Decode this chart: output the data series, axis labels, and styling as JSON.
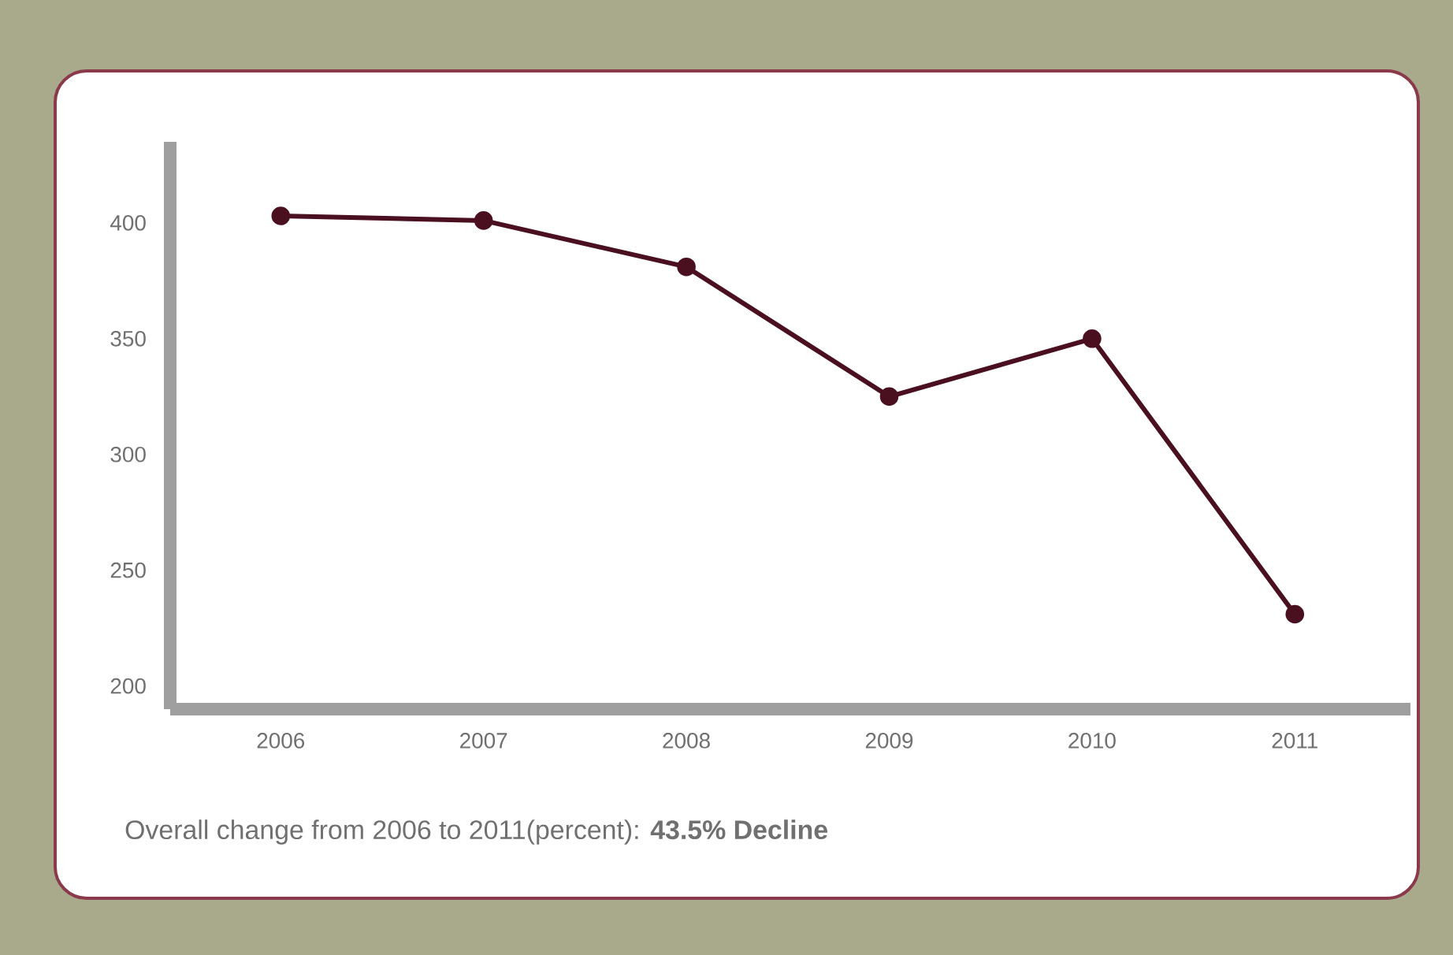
{
  "chart_data": {
    "type": "line",
    "categories": [
      "2006",
      "2007",
      "2008",
      "2009",
      "2010",
      "2011"
    ],
    "values": [
      403,
      401,
      381,
      325,
      350,
      231
    ],
    "color": "#4a1020",
    "marker": "circle",
    "ylim": [
      190,
      435
    ],
    "yticks": [
      200,
      250,
      300,
      350,
      400
    ],
    "annotations": [
      "Overall change from 2006 to 2011(percent): **43.5% Decline**"
    ]
  }
}
